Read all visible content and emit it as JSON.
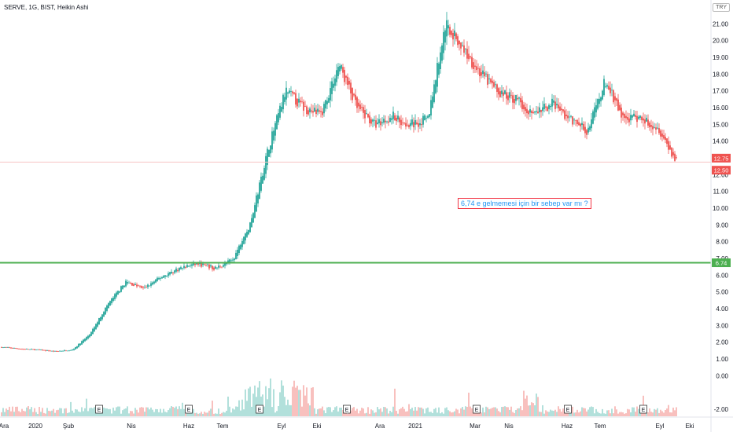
{
  "header": {
    "title": "SERVE, 1G, BIST, Heikin Ashi",
    "currency": "TRY"
  },
  "annotation": {
    "text": "6,74 e gelmemesi için bir sebep var mı ?"
  },
  "colors": {
    "up": "#26a69a",
    "down": "#ef5350",
    "support_line": "#4caf50",
    "last_line": "#f7c6c6",
    "up_volume": "#9fd8d2",
    "down_volume": "#f7b0ae"
  },
  "chart_data": {
    "type": "candlestick",
    "title": "SERVE, 1G, BIST, Heikin Ashi",
    "xlabel": "",
    "ylabel": "",
    "ylim": [
      -2.5,
      22
    ],
    "y_ticks": [
      "-2.00",
      "0.00",
      "1.00",
      "2.00",
      "3.00",
      "4.00",
      "5.00",
      "6.00",
      "7.00",
      "8.00",
      "9.00",
      "10.00",
      "11.00",
      "12.00",
      "13.00",
      "14.00",
      "15.00",
      "16.00",
      "17.00",
      "18.00",
      "19.00",
      "20.00",
      "21.00"
    ],
    "x_ticks": [
      "Ara",
      "2020",
      "Şub",
      "Nis",
      "Haz",
      "Tem",
      "Eyl",
      "Eki",
      "Ara",
      "2021",
      "Mar",
      "Nis",
      "Haz",
      "Tem",
      "Eyl",
      "Eki"
    ],
    "earnings_markers": [
      "E",
      "E",
      "E",
      "E",
      "E",
      "E",
      "E"
    ],
    "horizontal_lines": [
      {
        "name": "support",
        "value": 6.74,
        "label": "6.74"
      },
      {
        "name": "last",
        "value": 12.75,
        "label": "12.75"
      }
    ],
    "price_labels": [
      {
        "value": 12.75,
        "text": "12.75"
      },
      {
        "value": 12.5,
        "text": "12.50"
      },
      {
        "value": 6.74,
        "text": "6.74"
      }
    ],
    "price_path": [
      {
        "t": "Ara",
        "v": 1.7
      },
      {
        "t": "2020",
        "v": 1.6
      },
      {
        "t": "Şub",
        "v": 1.55
      },
      {
        "t": "Mar",
        "v": 1.45
      },
      {
        "t": "Mar2",
        "v": 1.55
      },
      {
        "t": "Nis",
        "v": 2.5
      },
      {
        "t": "Nis2",
        "v": 4.3
      },
      {
        "t": "May",
        "v": 5.6
      },
      {
        "t": "May2",
        "v": 5.2
      },
      {
        "t": "Haz",
        "v": 5.9
      },
      {
        "t": "Haz2",
        "v": 6.4
      },
      {
        "t": "Tem",
        "v": 6.7
      },
      {
        "t": "Tem2",
        "v": 6.4
      },
      {
        "t": "Ağu",
        "v": 6.9
      },
      {
        "t": "Ağu2",
        "v": 9.0
      },
      {
        "t": "Eyl",
        "v": 13.5
      },
      {
        "t": "Eyl2",
        "v": 17.0
      },
      {
        "t": "Eki",
        "v": 16.0
      },
      {
        "t": "Eki2",
        "v": 15.6
      },
      {
        "t": "Kas",
        "v": 18.6
      },
      {
        "t": "Kas2",
        "v": 16.0
      },
      {
        "t": "Ara",
        "v": 15.0
      },
      {
        "t": "Ara2",
        "v": 15.5
      },
      {
        "t": "Oca",
        "v": 15.0
      },
      {
        "t": "2021",
        "v": 15.3
      },
      {
        "t": "Şub",
        "v": 21.0
      },
      {
        "t": "Şub2",
        "v": 19.5
      },
      {
        "t": "Mar",
        "v": 18.0
      },
      {
        "t": "Nis",
        "v": 16.9
      },
      {
        "t": "Nis2",
        "v": 16.5
      },
      {
        "t": "May",
        "v": 15.6
      },
      {
        "t": "May2",
        "v": 16.3
      },
      {
        "t": "Haz",
        "v": 15.3
      },
      {
        "t": "Haz2",
        "v": 14.6
      },
      {
        "t": "Tem",
        "v": 17.6
      },
      {
        "t": "Tem2",
        "v": 15.3
      },
      {
        "t": "Ağu",
        "v": 15.4
      },
      {
        "t": "Eyl",
        "v": 14.8
      },
      {
        "t": "Eyl2",
        "v": 12.75
      }
    ],
    "grid": false,
    "legend": "none"
  }
}
